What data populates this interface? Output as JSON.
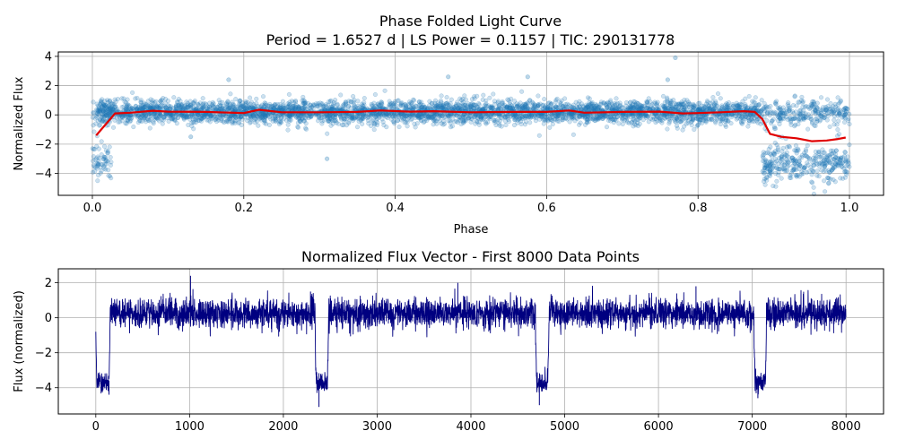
{
  "chart_data": [
    {
      "type": "scatter",
      "title": "Phase Folded Light Curve",
      "subtitle": "Period = 1.6527 d | LS Power = 0.1157 | TIC: 290131778",
      "xlabel": "Phase",
      "ylabel": "Normalized Flux",
      "xlim": [
        -0.045,
        1.045
      ],
      "ylim": [
        -5.5,
        4.3
      ],
      "xticks": [
        0.0,
        0.2,
        0.4,
        0.6,
        0.8,
        1.0
      ],
      "xtick_labels": [
        "0.0",
        "0.2",
        "0.4",
        "0.6",
        "0.8",
        "1.0"
      ],
      "yticks": [
        -4,
        -2,
        0,
        2,
        4
      ],
      "ytick_labels": [
        "−4",
        "−2",
        "0",
        "2",
        "4"
      ],
      "grid": true,
      "colors": {
        "points": "#1f77b4",
        "trend": "#e00000"
      },
      "scatter_summary": {
        "out_of_transit": {
          "phase_range": [
            0.01,
            1.0
          ],
          "flux_center": 0.2,
          "flux_spread": 0.55
        },
        "transit": {
          "phase_ranges": [
            [
              0.0,
              0.025
            ],
            [
              0.885,
              1.0
            ]
          ],
          "flux_center": -3.3,
          "flux_spread": 0.6
        },
        "outliers": [
          [
            0.18,
            2.4
          ],
          [
            0.31,
            -3.0
          ],
          [
            0.47,
            2.6
          ],
          [
            0.575,
            2.6
          ],
          [
            0.77,
            3.9
          ],
          [
            0.76,
            2.4
          ],
          [
            0.13,
            -1.5
          ]
        ]
      },
      "series": [
        {
          "name": "binned_mean",
          "x": [
            0.005,
            0.02,
            0.03,
            0.05,
            0.08,
            0.1,
            0.15,
            0.2,
            0.22,
            0.25,
            0.3,
            0.35,
            0.38,
            0.42,
            0.45,
            0.5,
            0.55,
            0.6,
            0.63,
            0.65,
            0.7,
            0.75,
            0.78,
            0.8,
            0.83,
            0.86,
            0.875,
            0.885,
            0.895,
            0.91,
            0.93,
            0.95,
            0.97,
            0.985,
            0.995
          ],
          "y": [
            -1.4,
            -0.5,
            0.1,
            0.15,
            0.28,
            0.22,
            0.2,
            0.12,
            0.35,
            0.18,
            0.18,
            0.2,
            0.3,
            0.22,
            0.25,
            0.18,
            0.2,
            0.2,
            0.3,
            0.15,
            0.2,
            0.22,
            0.1,
            0.12,
            0.18,
            0.25,
            0.2,
            -0.3,
            -1.3,
            -1.5,
            -1.6,
            -1.8,
            -1.75,
            -1.65,
            -1.55
          ]
        }
      ]
    },
    {
      "type": "line",
      "title": "Normalized Flux Vector - First 8000 Data Points",
      "xlabel": "",
      "ylabel": "Flux (normalized)",
      "xlim": [
        -400,
        8400
      ],
      "ylim": [
        -5.5,
        2.8
      ],
      "xticks": [
        0,
        1000,
        2000,
        3000,
        4000,
        5000,
        6000,
        7000,
        8000
      ],
      "xtick_labels": [
        "0",
        "1000",
        "2000",
        "3000",
        "4000",
        "5000",
        "6000",
        "7000",
        "8000"
      ],
      "yticks": [
        -4,
        -2,
        0,
        2
      ],
      "ytick_labels": [
        "−4",
        "−2",
        "0",
        "2"
      ],
      "grid": true,
      "colors": {
        "line": "#000080"
      },
      "line_summary": {
        "n_points": 8000,
        "baseline": 0.25,
        "noise": 0.42,
        "transit_depth": -3.7,
        "transit_ingress": [
          0,
          2340,
          4690,
          7020
        ],
        "transit_egress": [
          150,
          2480,
          4830,
          7150
        ],
        "spikes": [
          [
            1010,
            2.4
          ],
          [
            3860,
            2.0
          ],
          [
            6400,
            1.8
          ],
          [
            2290,
            1.5
          ],
          [
            140,
            -4.4
          ],
          [
            2380,
            -5.1
          ],
          [
            4730,
            -5.0
          ],
          [
            7060,
            -4.6
          ]
        ]
      }
    }
  ]
}
